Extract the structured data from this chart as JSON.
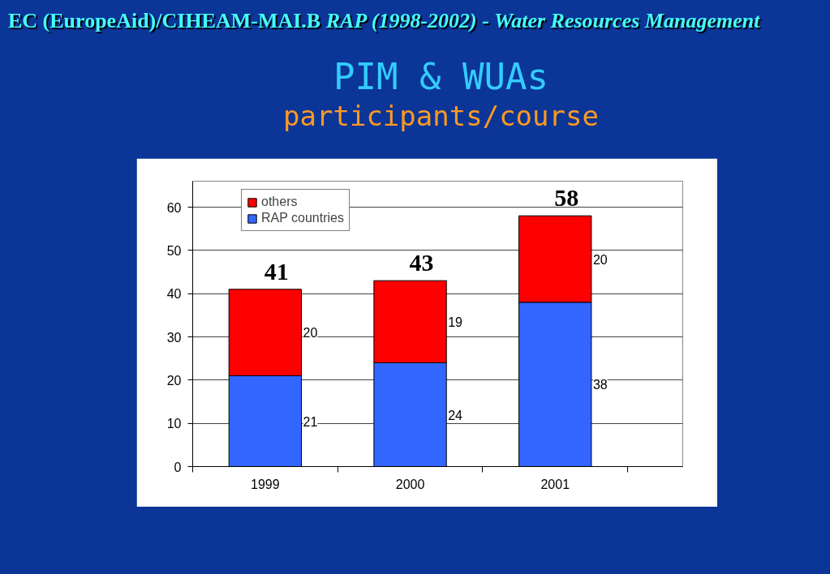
{
  "chart_data": {
    "type": "bar",
    "stacked": true,
    "title": "PIM & WUAs",
    "subtitle": "participants/course",
    "annotations": [
      "EC (EuropeAid)/CIHEAM-MAI.B",
      "RAP (1998-2002) - Water Resources Management"
    ],
    "categories": [
      "1999",
      "2000",
      "2001"
    ],
    "series": [
      {
        "name": "RAP countries",
        "color": "#3366ff",
        "values": [
          21,
          24,
          38
        ]
      },
      {
        "name": "others",
        "color": "#ff0000",
        "values": [
          20,
          19,
          20
        ]
      }
    ],
    "totals": [
      "41",
      "43",
      "58"
    ],
    "data_labels": true,
    "ylim": [
      0,
      66
    ],
    "yticks": [
      0,
      10,
      20,
      30,
      40,
      50,
      60
    ],
    "grid": "y",
    "legend": "top left"
  }
}
